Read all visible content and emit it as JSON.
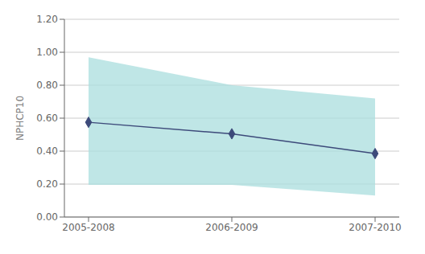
{
  "chart_data": {
    "type": "line",
    "categories": [
      "2005-2008",
      "2006-2009",
      "2007-2010"
    ],
    "values": [
      0.575,
      0.505,
      0.385
    ],
    "band": {
      "upper": [
        0.97,
        0.8,
        0.72
      ],
      "lower": [
        0.195,
        0.195,
        0.13
      ],
      "color": "#aadddd"
    },
    "color": "#3d4a7a",
    "marker": "diamond",
    "ylabel": "NPHCP10",
    "ylim": [
      0.0,
      1.2
    ],
    "yticks": [
      {
        "value": 0.0,
        "label": "0.00"
      },
      {
        "value": 0.2,
        "label": "0.20"
      },
      {
        "value": 0.4,
        "label": "0.40"
      },
      {
        "value": 0.6,
        "label": "0.60"
      },
      {
        "value": 0.8,
        "label": "0.80"
      },
      {
        "value": 1.0,
        "label": "1.00"
      },
      {
        "value": 1.2,
        "label": "1.20"
      }
    ],
    "grid": true
  }
}
